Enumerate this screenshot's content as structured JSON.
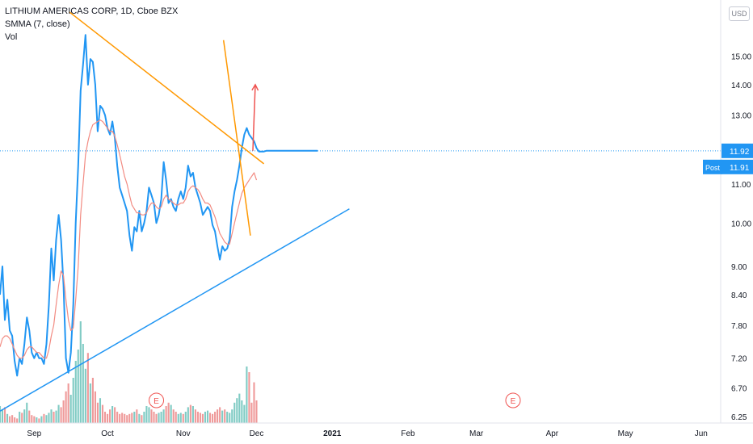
{
  "legend": {
    "title": "LITHIUM AMERICAS CORP, 1D, Cboe BZX",
    "indicator": "SMMA (7, close)",
    "volume": "Vol"
  },
  "currency": "USD",
  "chart_data": {
    "type": "line",
    "price_axis": {
      "ticks": [
        15.0,
        14.0,
        13.0,
        11.0,
        10.0,
        9.0,
        8.4,
        7.8,
        7.2,
        6.7,
        6.25
      ],
      "tick_labels": [
        "15.00",
        "14.00",
        "13.00",
        "11.00",
        "10.00",
        "9.00",
        "8.40",
        "7.80",
        "7.20",
        "6.70",
        "6.25"
      ],
      "scale": "log",
      "ylim": [
        6.15,
        17.2
      ]
    },
    "time_axis": {
      "labels": [
        "Sep",
        "Oct",
        "Nov",
        "Dec",
        "2021",
        "Feb",
        "Mar",
        "Apr",
        "May",
        "Jun"
      ],
      "label_days": [
        31,
        61,
        92,
        122,
        153,
        184,
        212,
        243,
        273,
        304
      ],
      "xlim": [
        17,
        312
      ]
    },
    "last_price": {
      "value": 11.92,
      "label": "11.92",
      "color": "#2196f3"
    },
    "post_price": {
      "value": 11.91,
      "label": "11.91",
      "tag": "Post",
      "color": "#2196f3"
    },
    "series": [
      {
        "color": "#2196f3",
        "x": [
          17,
          18,
          19,
          20,
          21,
          22,
          23,
          24,
          25,
          26,
          27,
          28,
          29,
          30,
          31,
          32,
          33,
          34,
          35,
          36,
          37,
          38,
          39,
          40,
          41,
          42,
          43,
          44,
          45,
          46,
          47,
          48,
          49,
          50,
          51,
          52,
          53,
          54,
          55,
          56,
          57,
          58,
          59,
          60,
          61,
          62,
          63,
          64,
          65,
          66,
          67,
          68,
          69,
          70,
          71,
          72,
          73,
          74,
          75,
          76,
          77,
          78,
          79,
          80,
          81,
          82,
          83,
          84,
          85,
          86,
          87,
          88,
          89,
          90,
          91,
          92,
          93,
          94,
          95,
          96,
          97,
          98,
          99,
          100,
          101,
          102,
          103,
          104,
          105,
          106,
          107,
          108,
          109,
          110,
          111,
          112,
          113,
          114,
          115,
          116,
          117,
          118,
          119,
          120,
          121,
          122,
          123,
          124,
          125,
          126,
          127,
          128,
          129,
          130,
          131,
          132,
          133,
          134,
          135,
          136,
          137,
          138,
          139,
          140,
          141,
          142,
          143,
          144,
          145,
          146,
          147
        ],
        "y": [
          8.4,
          9.0,
          7.9,
          8.3,
          7.7,
          7.6,
          7.15,
          6.9,
          7.2,
          7.1,
          7.45,
          7.95,
          7.7,
          7.3,
          7.2,
          7.3,
          7.2,
          7.2,
          7.1,
          7.45,
          8.2,
          9.4,
          8.7,
          9.6,
          10.2,
          9.6,
          8.6,
          7.2,
          6.95,
          7.3,
          8.2,
          10.0,
          11.5,
          13.8,
          14.7,
          15.8,
          14.0,
          14.9,
          14.8,
          14.0,
          12.5,
          13.3,
          13.2,
          13.0,
          12.6,
          12.4,
          12.8,
          12.3,
          11.5,
          10.9,
          10.7,
          10.5,
          10.3,
          9.7,
          9.35,
          9.9,
          9.8,
          10.3,
          9.8,
          10.0,
          10.3,
          10.9,
          10.7,
          10.5,
          10.0,
          10.2,
          10.6,
          11.6,
          11.1,
          10.5,
          10.6,
          10.4,
          10.3,
          10.6,
          10.8,
          10.6,
          10.9,
          11.5,
          11.2,
          11.3,
          10.9,
          10.7,
          10.5,
          10.2,
          10.3,
          10.4,
          10.3,
          9.95,
          9.8,
          9.45,
          9.15,
          9.45,
          9.35,
          9.4,
          9.6,
          10.4,
          10.8,
          11.1,
          11.5,
          12.0,
          12.4,
          12.6,
          12.4,
          12.3,
          12.2,
          12.0,
          11.9,
          11.9,
          11.9,
          11.92,
          11.92,
          11.92,
          11.92,
          11.92,
          11.92,
          11.92,
          11.92,
          11.92,
          11.92,
          11.92,
          11.92,
          11.92,
          11.92,
          11.92,
          11.92,
          11.92,
          11.92,
          11.92,
          11.92,
          11.92,
          11.92
        ]
      },
      {
        "color": "#f28b82",
        "x": [
          17,
          18,
          19,
          20,
          21,
          22,
          23,
          24,
          25,
          26,
          27,
          28,
          29,
          30,
          31,
          32,
          33,
          34,
          35,
          36,
          37,
          38,
          39,
          40,
          41,
          42,
          43,
          44,
          45,
          46,
          47,
          48,
          49,
          50,
          51,
          52,
          53,
          54,
          55,
          56,
          57,
          58,
          59,
          60,
          61,
          62,
          63,
          64,
          65,
          66,
          67,
          68,
          69,
          70,
          71,
          72,
          73,
          74,
          75,
          76,
          77,
          78,
          79,
          80,
          81,
          82,
          83,
          84,
          85,
          86,
          87,
          88,
          89,
          90,
          91,
          92,
          93,
          94,
          95,
          96,
          97,
          98,
          99,
          100,
          101,
          102,
          103,
          104,
          105,
          106,
          107,
          108,
          109,
          110,
          111,
          112,
          113,
          114,
          115,
          116,
          117,
          118,
          119,
          120,
          121,
          122
        ],
        "y": [
          7.4,
          7.55,
          7.6,
          7.6,
          7.55,
          7.45,
          7.35,
          7.25,
          7.2,
          7.2,
          7.25,
          7.35,
          7.4,
          7.4,
          7.35,
          7.3,
          7.3,
          7.25,
          7.2,
          7.2,
          7.35,
          7.6,
          7.8,
          8.2,
          8.6,
          8.9,
          8.8,
          8.3,
          7.9,
          7.7,
          7.75,
          8.3,
          9.0,
          10.2,
          11.0,
          11.8,
          12.2,
          12.5,
          12.7,
          12.75,
          12.8,
          12.85,
          12.8,
          12.7,
          12.6,
          12.5,
          12.5,
          12.35,
          12.1,
          11.8,
          11.5,
          11.2,
          11.0,
          10.7,
          10.45,
          10.35,
          10.25,
          10.25,
          10.2,
          10.2,
          10.25,
          10.4,
          10.5,
          10.5,
          10.4,
          10.35,
          10.4,
          10.6,
          10.7,
          10.6,
          10.55,
          10.5,
          10.45,
          10.45,
          10.5,
          10.5,
          10.6,
          10.8,
          10.9,
          10.95,
          10.9,
          10.85,
          10.75,
          10.6,
          10.5,
          10.5,
          10.45,
          10.3,
          10.15,
          9.95,
          9.75,
          9.65,
          9.55,
          9.5,
          9.5,
          9.75,
          10.0,
          10.25,
          10.5,
          10.75,
          10.9,
          11.0,
          11.1,
          11.2,
          11.3,
          11.1
        ]
      }
    ],
    "volume": {
      "scale_max": 100,
      "x": [
        17,
        18,
        19,
        20,
        21,
        22,
        23,
        24,
        25,
        26,
        27,
        28,
        29,
        30,
        31,
        32,
        33,
        34,
        35,
        36,
        37,
        38,
        39,
        40,
        41,
        42,
        43,
        44,
        45,
        46,
        47,
        48,
        49,
        50,
        51,
        52,
        53,
        54,
        55,
        56,
        57,
        58,
        59,
        60,
        61,
        62,
        63,
        64,
        65,
        66,
        67,
        68,
        69,
        70,
        71,
        72,
        73,
        74,
        75,
        76,
        77,
        78,
        79,
        80,
        81,
        82,
        83,
        84,
        85,
        86,
        87,
        88,
        89,
        90,
        91,
        92,
        93,
        94,
        95,
        96,
        97,
        98,
        99,
        100,
        101,
        102,
        103,
        104,
        105,
        106,
        107,
        108,
        109,
        110,
        111,
        112,
        113,
        114,
        115,
        116,
        117,
        118,
        119,
        120,
        121,
        122
      ],
      "values": [
        15,
        12,
        14,
        8,
        6,
        7,
        5,
        4,
        10,
        9,
        12,
        18,
        11,
        7,
        6,
        5,
        4,
        6,
        8,
        7,
        9,
        12,
        10,
        11,
        16,
        14,
        20,
        28,
        35,
        25,
        40,
        55,
        65,
        90,
        70,
        48,
        62,
        35,
        40,
        28,
        18,
        22,
        16,
        10,
        8,
        12,
        15,
        14,
        10,
        8,
        9,
        8,
        7,
        8,
        9,
        10,
        12,
        8,
        7,
        10,
        15,
        14,
        12,
        10,
        8,
        9,
        10,
        12,
        15,
        18,
        16,
        12,
        10,
        8,
        9,
        8,
        10,
        14,
        16,
        15,
        12,
        10,
        9,
        8,
        10,
        11,
        9,
        8,
        10,
        12,
        14,
        11,
        12,
        10,
        9,
        12,
        18,
        22,
        26,
        20,
        16,
        50,
        45,
        18,
        36,
        20
      ],
      "up_color": "#80cbc4",
      "down_color": "#ef9a9a"
    },
    "annotations": [
      {
        "type": "trendline",
        "color": "#ff9800",
        "from": [
          45.5,
          16.7
        ],
        "to": [
          125,
          11.55
        ]
      },
      {
        "type": "trendline",
        "color": "#ff9800",
        "from": [
          108.5,
          15.6
        ],
        "to": [
          119.5,
          9.7
        ]
      },
      {
        "type": "trendline",
        "color": "#2196f3",
        "from": [
          17,
          6.33
        ],
        "to": [
          160,
          10.35
        ]
      },
      {
        "type": "arrow",
        "color": "#ef5350",
        "from": [
          120.5,
          11.92
        ],
        "to": [
          121.5,
          14.0
        ]
      },
      {
        "type": "earnings",
        "label": "E",
        "color": "#ef5350",
        "x": [
          81,
          227
        ]
      }
    ]
  }
}
